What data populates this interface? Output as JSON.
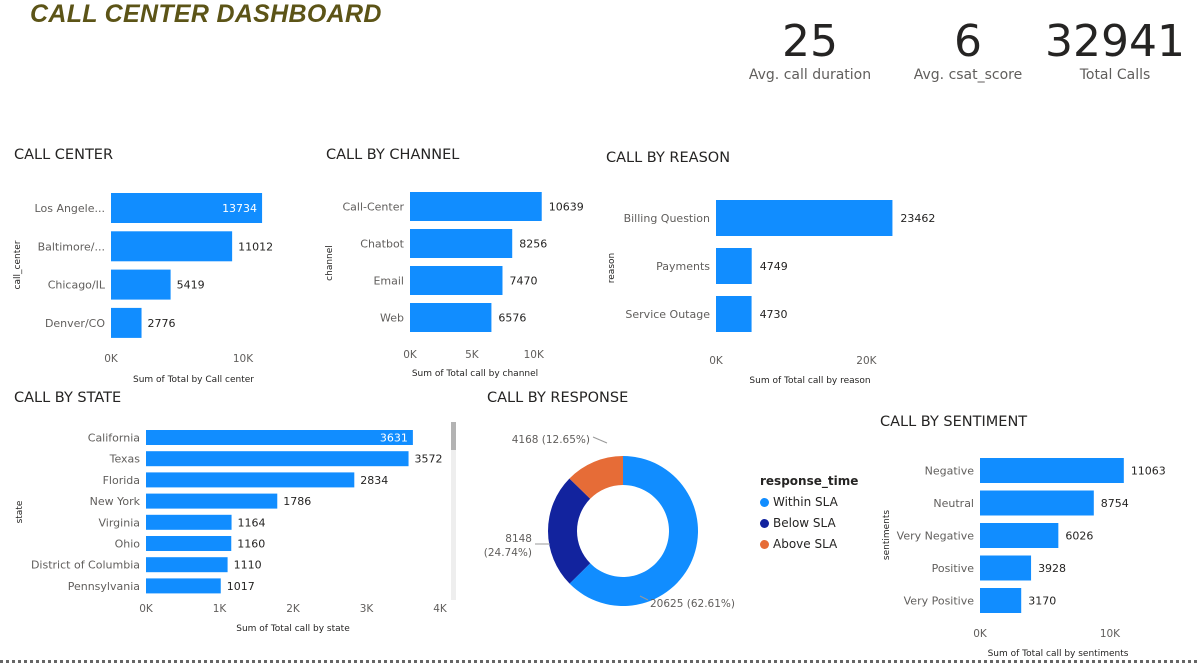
{
  "dashboard": {
    "title": "CALL CENTER DASHBOARD"
  },
  "kpis": [
    {
      "value": "25",
      "label": "Avg. call duration"
    },
    {
      "value": "6",
      "label": "Avg. csat_score"
    },
    {
      "value": "32941",
      "label": "Total Calls"
    }
  ],
  "colors": {
    "bar": "#118dff",
    "within": "#118dff",
    "below": "#12239e",
    "above": "#e66c37"
  },
  "chart_data": [
    {
      "id": "call_center",
      "title": "CALL CENTER",
      "type": "bar",
      "orientation": "horizontal",
      "categories": [
        "Los Angele...",
        "Baltimore/...",
        "Chicago/IL",
        "Denver/CO"
      ],
      "values": [
        13734,
        11012,
        5419,
        2776
      ],
      "xlabel": "Sum of Total by Call center",
      "ylabel": "call_center",
      "xticks": [
        "0K",
        "10K"
      ],
      "xlim": [
        0,
        15000
      ]
    },
    {
      "id": "call_by_channel",
      "title": "CALL BY CHANNEL",
      "type": "bar",
      "orientation": "horizontal",
      "categories": [
        "Call-Center",
        "Chatbot",
        "Email",
        "Web"
      ],
      "values": [
        10639,
        8256,
        7470,
        6576
      ],
      "xlabel": "Sum of Total call by channel",
      "ylabel": "channel",
      "xticks": [
        "0K",
        "5K",
        "10K"
      ],
      "xlim": [
        0,
        10500
      ]
    },
    {
      "id": "call_by_reason",
      "title": "CALL BY REASON",
      "type": "bar",
      "orientation": "horizontal",
      "categories": [
        "Billing Question",
        "Payments",
        "Service Outage"
      ],
      "values": [
        23462,
        4749,
        4730
      ],
      "xlabel": "Sum of Total call by reason",
      "ylabel": "reason",
      "xticks": [
        "0K",
        "20K"
      ],
      "xlim": [
        0,
        25000
      ]
    },
    {
      "id": "call_by_state",
      "title": "CALL BY STATE",
      "type": "bar",
      "orientation": "horizontal",
      "categories": [
        "California",
        "Texas",
        "Florida",
        "New York",
        "Virginia",
        "Ohio",
        "District of Columbia",
        "Pennsylvania"
      ],
      "values": [
        3631,
        3572,
        2834,
        1786,
        1164,
        1160,
        1110,
        1017
      ],
      "xlabel": "Sum of Total call by state",
      "ylabel": "state",
      "xticks": [
        "0K",
        "1K",
        "2K",
        "3K",
        "4K"
      ],
      "xlim": [
        0,
        4000
      ]
    },
    {
      "id": "call_by_response",
      "title": "CALL BY RESPONSE",
      "type": "pie",
      "variant": "donut",
      "legend_title": "response_time",
      "legend_position": "right",
      "slices": [
        {
          "name": "Within SLA",
          "value": 20625,
          "label": "20625 (62.61%)"
        },
        {
          "name": "Below SLA",
          "value": 8148,
          "label": "8148 (24.74%)"
        },
        {
          "name": "Above SLA",
          "value": 4168,
          "label": "4168 (12.65%)"
        }
      ]
    },
    {
      "id": "call_by_sentiment",
      "title": "CALL BY SENTIMENT",
      "type": "bar",
      "orientation": "horizontal",
      "categories": [
        "Negative",
        "Neutral",
        "Very Negative",
        "Positive",
        "Very Positive"
      ],
      "values": [
        11063,
        8754,
        6026,
        3928,
        3170
      ],
      "xlabel": "Sum of Total call by sentiments",
      "ylabel": "sentiments",
      "xticks": [
        "0K",
        "10K"
      ],
      "xlim": [
        0,
        12000
      ]
    }
  ]
}
